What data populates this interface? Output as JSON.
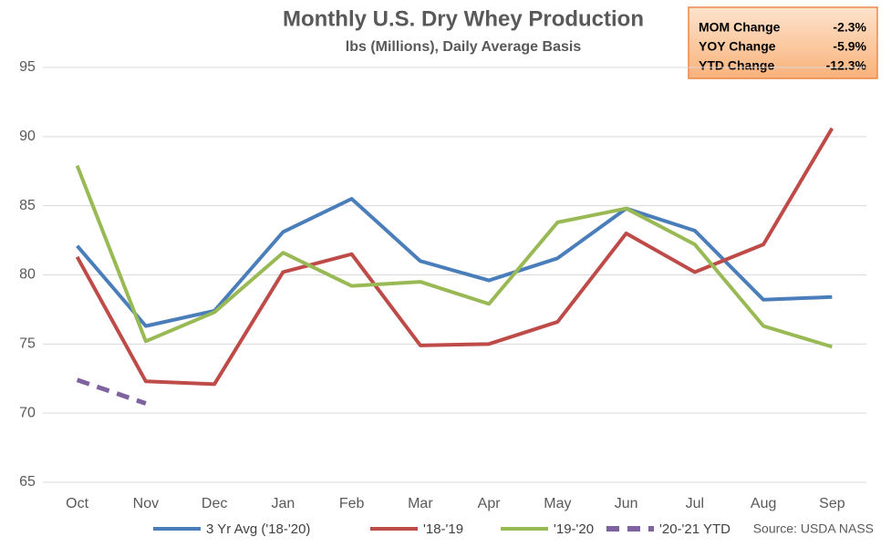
{
  "chart_data": {
    "type": "line",
    "title": "Monthly U.S. Dry Whey Production",
    "subtitle": "lbs (Millions), Daily Average Basis",
    "source": "Source: USDA NASS",
    "categories": [
      "Oct",
      "Nov",
      "Dec",
      "Jan",
      "Feb",
      "Mar",
      "Apr",
      "May",
      "Jun",
      "Jul",
      "Aug",
      "Sep"
    ],
    "series": [
      {
        "name": "3 Yr Avg ('18-'20)",
        "color": "#4a7ebb",
        "dashed": false,
        "values": [
          82.1,
          76.3,
          77.4,
          83.1,
          85.5,
          81.0,
          79.6,
          81.2,
          84.8,
          83.2,
          78.2,
          78.4
        ]
      },
      {
        "name": "'18-'19",
        "color": "#be4b48",
        "dashed": false,
        "values": [
          81.3,
          72.3,
          72.1,
          80.2,
          81.5,
          74.9,
          75.0,
          76.6,
          83.0,
          80.2,
          82.2,
          90.6
        ]
      },
      {
        "name": "'19-'20",
        "color": "#98b954",
        "dashed": false,
        "values": [
          87.9,
          75.2,
          77.3,
          81.6,
          79.2,
          79.5,
          77.9,
          83.8,
          84.8,
          82.2,
          76.3,
          74.8
        ]
      },
      {
        "name": "'20-'21 YTD",
        "color": "#7f63a1",
        "dashed": true,
        "values": [
          72.4,
          70.7,
          null,
          null,
          null,
          null,
          null,
          null,
          null,
          null,
          null,
          null
        ]
      }
    ],
    "ylim": [
      65,
      95
    ],
    "yticks": [
      65,
      70,
      75,
      80,
      85,
      90,
      95
    ],
    "grid": true,
    "info_box": [
      {
        "label": "MOM Change",
        "value": "-2.3%"
      },
      {
        "label": "YOY Change",
        "value": "-5.9%"
      },
      {
        "label": "YTD Change",
        "value": "-12.3%"
      }
    ]
  }
}
